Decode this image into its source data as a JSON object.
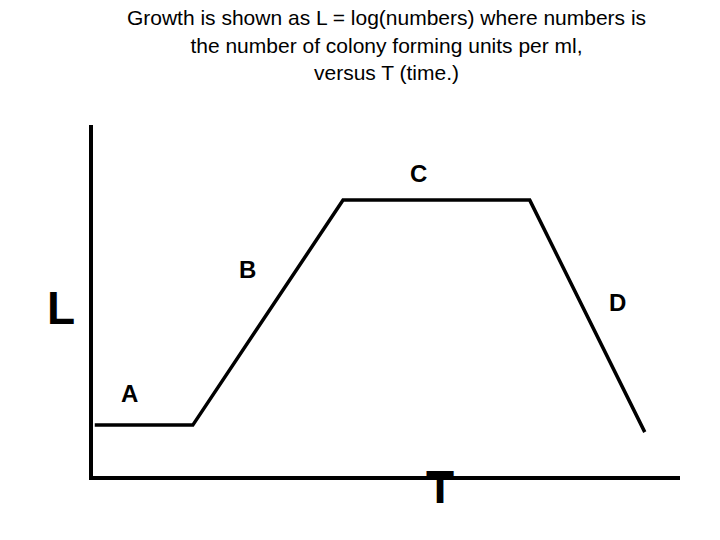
{
  "chart_data": {
    "type": "line",
    "title": [
      "Growth is shown as L = log(numbers) where numbers is",
      "the number of colony forming units per ml,",
      "versus T (time.)"
    ],
    "xlabel": "T",
    "ylabel": "L",
    "x": [
      0.3,
      17,
      42.6,
      74.4,
      94
    ],
    "values": [
      14.5,
      14.5,
      78.6,
      78.6,
      12.5
    ],
    "color": "#000000",
    "marker": "none",
    "line_style": "solid",
    "xlim": [
      0,
      100
    ],
    "ylim": [
      0,
      100
    ],
    "tick_labels": false,
    "grid": false,
    "annotations": [
      {
        "text": "A",
        "x": 6.3,
        "y": 23.6
      },
      {
        "text": "B",
        "x": 26.4,
        "y": 58.7
      },
      {
        "text": "C",
        "x": 55.4,
        "y": 86.3
      },
      {
        "text": "D",
        "x": 89.3,
        "y": 49.3
      }
    ]
  }
}
